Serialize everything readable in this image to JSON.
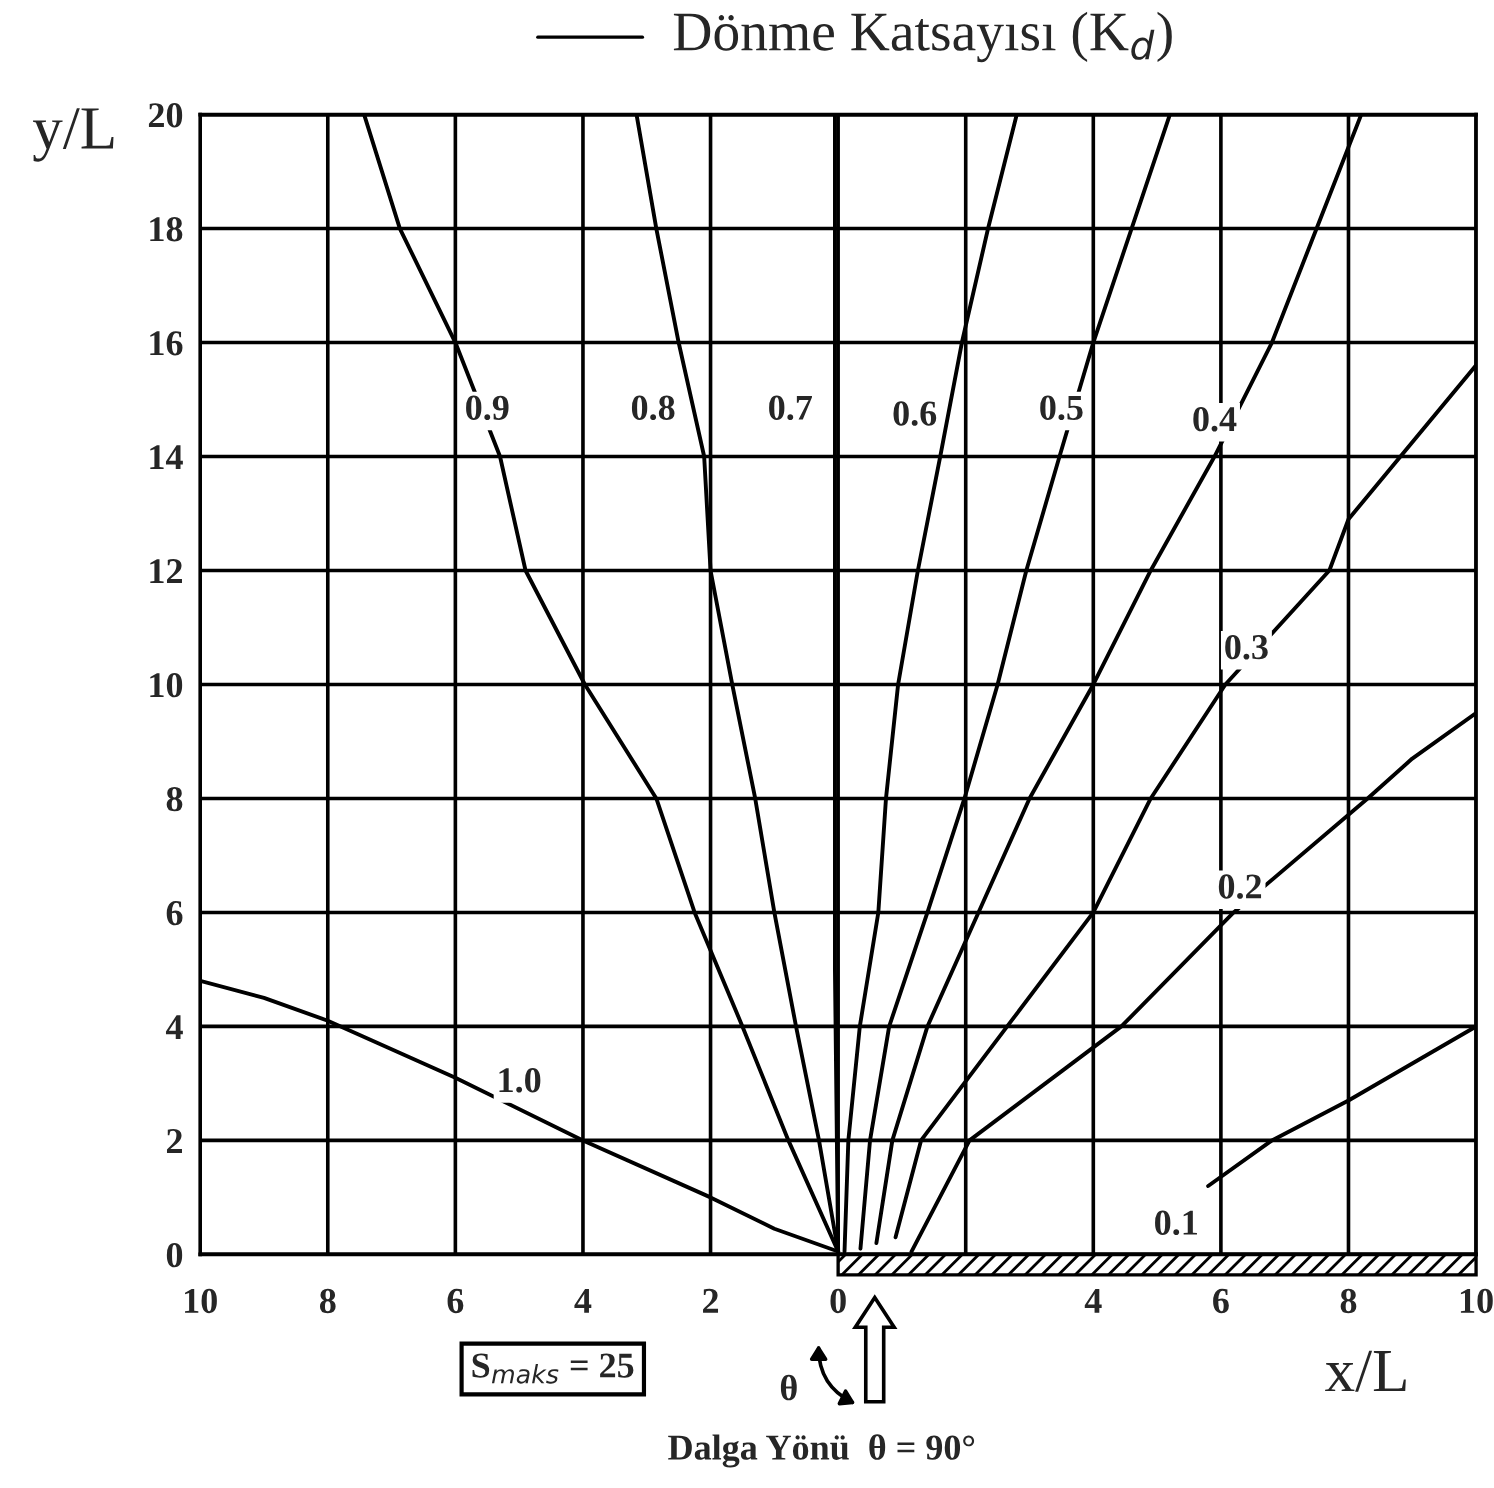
{
  "chart_data": {
    "type": "line",
    "title": "Dönme Katsayısı (K$_{d}$)",
    "xlabel": "x/L",
    "ylabel": "y/L",
    "xlim": [
      -10,
      10
    ],
    "ylim": [
      0,
      20
    ],
    "xticks": [
      {
        "value": -10,
        "label": "10"
      },
      {
        "value": -8,
        "label": "8"
      },
      {
        "value": -6,
        "label": "6"
      },
      {
        "value": -4,
        "label": "4"
      },
      {
        "value": -2,
        "label": "2"
      },
      0,
      {
        "value": 2,
        "label": null
      },
      4,
      6,
      8,
      10
    ],
    "yticks": [
      0,
      2,
      4,
      6,
      8,
      10,
      12,
      14,
      16,
      18,
      20
    ],
    "grid": true,
    "marker": "none",
    "line_style": "solid",
    "series": [
      {
        "color": "#000000",
        "x": [
          -10,
          -9,
          -8,
          -6,
          -4,
          -2,
          -1,
          0
        ],
        "values": [
          4.8,
          4.5,
          4.1,
          3.1,
          2.0,
          1.0,
          0.45,
          0.05
        ]
      },
      {
        "color": "#000000",
        "x": [
          -7.43,
          -6.87,
          -6.0,
          -5.3,
          -4.9,
          -3.97,
          -2.85,
          -2.25,
          -1.5,
          -0.78,
          0
        ],
        "values": [
          20,
          18,
          16,
          14,
          12,
          10,
          8,
          6,
          4,
          2,
          0.05
        ]
      },
      {
        "color": "#000000",
        "x": [
          -3.16,
          -2.85,
          -2.5,
          -2.1,
          -2.0,
          -1.66,
          -1.3,
          -1.0,
          -0.66,
          -0.3,
          0
        ],
        "values": [
          20,
          18,
          16,
          14,
          12,
          10,
          8,
          6,
          4,
          2,
          0.05
        ]
      },
      {
        "color": "#000000",
        "x": [
          -0.05,
          -0.05,
          -0.05,
          -0.05,
          0
        ],
        "values": [
          20,
          14,
          10,
          5,
          0.05
        ]
      },
      {
        "color": "#000000",
        "x": [
          2.8,
          2.35,
          1.94,
          1.6,
          1.25,
          0.94,
          0.75,
          0.63,
          0.34,
          0.16,
          0.1
        ],
        "values": [
          20,
          18,
          16,
          14,
          12,
          10,
          8,
          6,
          4,
          2,
          0.05
        ]
      },
      {
        "color": "#000000",
        "x": [
          5.2,
          4.6,
          4.0,
          3.47,
          2.95,
          2.5,
          1.98,
          1.4,
          0.8,
          0.5,
          0.35
        ],
        "values": [
          20,
          18,
          16,
          14,
          12,
          10,
          8,
          6,
          4,
          2,
          0.1
        ]
      },
      {
        "color": "#000000",
        "x": [
          8.2,
          7.5,
          6.8,
          5.9,
          4.9,
          4.0,
          3.0,
          2.2,
          1.4,
          0.85,
          0.6
        ],
        "values": [
          20,
          18,
          16,
          14,
          12,
          10,
          8,
          6,
          4,
          2,
          0.2
        ]
      },
      {
        "color": "#000000",
        "x": [
          10,
          8.0,
          7.7,
          6.07,
          4.9,
          4.0,
          2.65,
          1.3,
          0.9
        ],
        "values": [
          15.6,
          12.9,
          12,
          10,
          8,
          6,
          4,
          2,
          0.3
        ]
      },
      {
        "color": "#000000",
        "x": [
          10,
          9,
          8.3,
          6.2,
          4.44,
          2.06,
          1.15
        ],
        "values": [
          9.5,
          8.7,
          8,
          6,
          4,
          2,
          0.05
        ]
      },
      {
        "color": "#000000",
        "x": [
          5.8,
          6.8,
          8,
          10
        ],
        "values": [
          1.2,
          2,
          2.7,
          4
        ]
      }
    ],
    "annotations": [
      {
        "text": "1.0",
        "x": -5.0,
        "y": 3.0
      },
      {
        "text": "0.9",
        "x": -5.5,
        "y": 14.8
      },
      {
        "text": "0.8",
        "x": -2.9,
        "y": 14.8
      },
      {
        "text": "0.7",
        "x": -0.75,
        "y": 14.8
      },
      {
        "text": "0.6",
        "x": 1.2,
        "y": 14.7
      },
      {
        "text": "0.5",
        "x": 3.5,
        "y": 14.8
      },
      {
        "text": "0.4",
        "x": 5.9,
        "y": 14.6
      },
      {
        "text": "0.3",
        "x": 6.4,
        "y": 10.6
      },
      {
        "text": "0.2",
        "x": 6.3,
        "y": 6.4
      },
      {
        "text": "0.1",
        "x": 5.3,
        "y": 0.5
      },
      "S$_{maks}$ = 25",
      "θ",
      "Dalga Yönü  θ = 90°"
    ]
  }
}
